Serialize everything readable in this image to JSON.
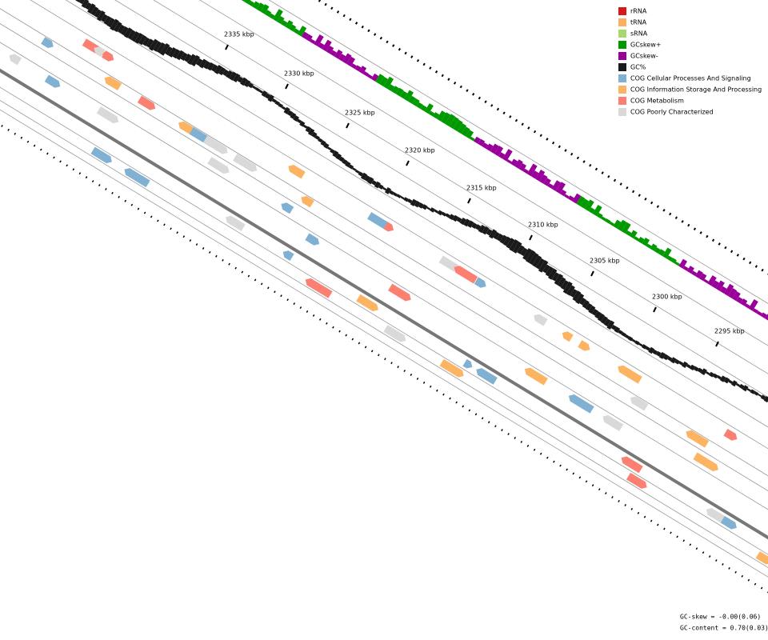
{
  "legend": [
    {
      "label": "rRNA",
      "color": "#d7191c"
    },
    {
      "label": "tRNA",
      "color": "#fdae61"
    },
    {
      "label": "sRNA",
      "color": "#a6d96a"
    },
    {
      "label": "GCskew+",
      "color": "#009900"
    },
    {
      "label": "GCskew-",
      "color": "#990099"
    },
    {
      "label": "GC%",
      "color": "#1a1a1a"
    },
    {
      "label": "COG Cellular Processes And Signaling",
      "color": "#80b1d3"
    },
    {
      "label": "COG Information Storage And Processing",
      "color": "#fdb462"
    },
    {
      "label": "COG Metabolism",
      "color": "#fb8072"
    },
    {
      "label": "COG Poorly Characterized",
      "color": "#d9d9d9"
    }
  ],
  "scale_labels": [
    "2335 kbp",
    "2330 kbp",
    "2325 kbp",
    "2320 kbp",
    "2315 kbp",
    "2310 kbp",
    "2305 kbp",
    "2300 kbp",
    "2295 kbp"
  ],
  "footer": {
    "gc_skew": "GC-skew = -0.00(0.06)",
    "gc_content": "GC-content = 0.70(0.03)"
  }
}
